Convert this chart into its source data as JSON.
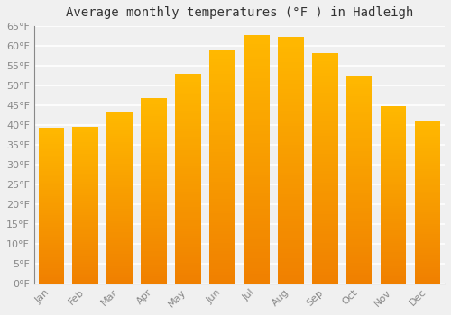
{
  "title": "Average monthly temperatures (°F ) in Hadleigh",
  "months": [
    "Jan",
    "Feb",
    "Mar",
    "Apr",
    "May",
    "Jun",
    "Jul",
    "Aug",
    "Sep",
    "Oct",
    "Nov",
    "Dec"
  ],
  "values": [
    39.2,
    39.6,
    43.2,
    46.9,
    52.9,
    58.8,
    62.8,
    62.2,
    58.3,
    52.5,
    44.8,
    41.2
  ],
  "bar_color_center": "#FFB800",
  "bar_color_edge": "#F08000",
  "ylim": [
    0,
    65
  ],
  "yticks": [
    0,
    5,
    10,
    15,
    20,
    25,
    30,
    35,
    40,
    45,
    50,
    55,
    60,
    65
  ],
  "background_color": "#F0F0F0",
  "grid_color": "#FFFFFF",
  "title_fontsize": 10,
  "tick_fontsize": 8,
  "tick_color": "#888888",
  "bar_width": 0.75
}
